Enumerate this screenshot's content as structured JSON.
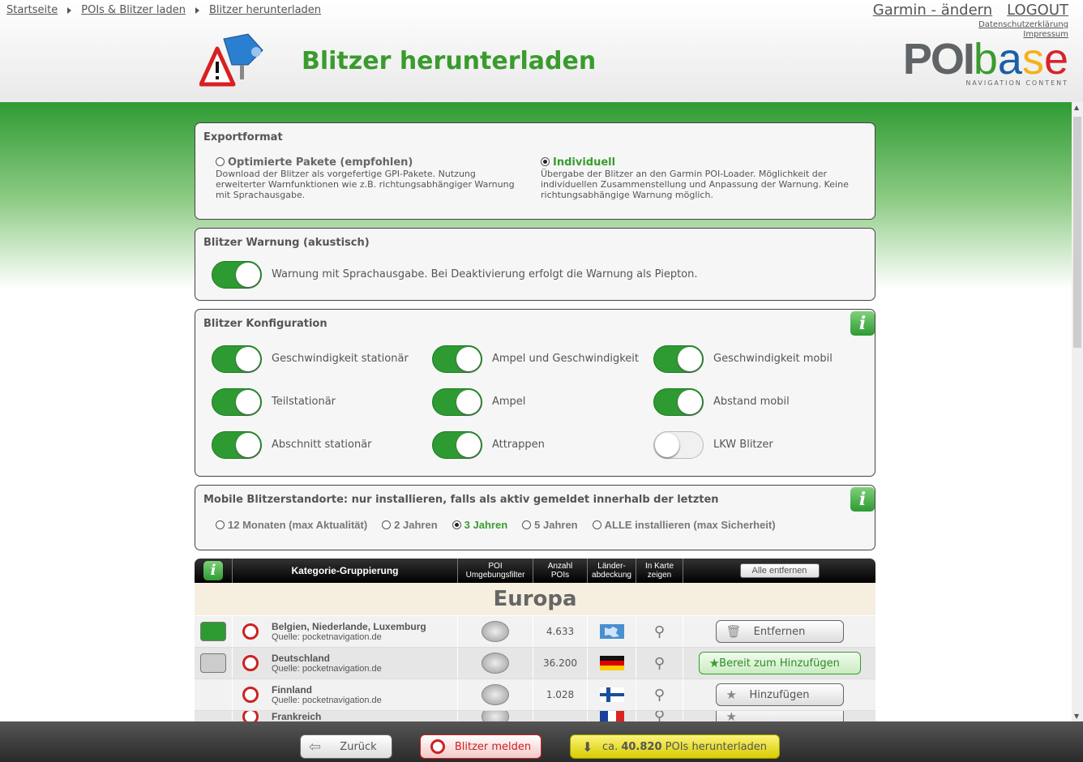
{
  "breadcrumb": [
    "Startseite",
    "POIs & Blitzer laden",
    "Blitzer herunterladen"
  ],
  "toplinks": {
    "device": "Garmin - ändern",
    "logout": "LOGOUT",
    "privacy": "Datenschutzerklärung",
    "imprint": "Impressum"
  },
  "logo": {
    "poi": "POI",
    "base": "base",
    "sub": "NAVIGATION CONTENT",
    "colors": [
      "#3a9b2e",
      "#1a5fa8",
      "#f3b21b",
      "#d8232a"
    ]
  },
  "page_title": "Blitzer herunterladen",
  "export": {
    "title": "Exportformat",
    "options": [
      {
        "label": "Optimierte Pakete (empfohlen)",
        "desc": "Download der Blitzer als vorgefertige GPI-Pakete. Nutzung erweiterter Warnfunktionen wie z.B. richtungsabhängiger Warnung mit Sprachausgabe.",
        "selected": false
      },
      {
        "label": "Individuell",
        "desc": "Übergabe der Blitzer an den Garmin POI-Loader. Möglichkeit der individuellen Zusammenstellung und Anpassung der Warnung. Keine richtungsabhängige Warnung möglich.",
        "selected": true
      }
    ]
  },
  "warning": {
    "title": "Blitzer Warnung (akustisch)",
    "label": "Warnung mit Sprachausgabe. Bei Deaktivierung erfolgt die Warnung als Piepton.",
    "on": true
  },
  "config": {
    "title": "Blitzer Konfiguration",
    "items": [
      {
        "label": "Geschwindigkeit stationär",
        "on": true
      },
      {
        "label": "Ampel und Geschwindigkeit",
        "on": true
      },
      {
        "label": "Geschwindigkeit mobil",
        "on": true
      },
      {
        "label": "Teilstationär",
        "on": true
      },
      {
        "label": "Ampel",
        "on": true
      },
      {
        "label": "Abstand mobil",
        "on": true
      },
      {
        "label": "Abschnitt stationär",
        "on": true
      },
      {
        "label": "Attrappen",
        "on": true
      },
      {
        "label": "LKW Blitzer",
        "on": false
      }
    ]
  },
  "mobile": {
    "title": "Mobile Blitzerstandorte: nur installieren, falls als aktiv gemeldet innerhalb der letzten",
    "options": [
      {
        "label": "12 Monaten (max Aktualität)",
        "selected": false
      },
      {
        "label": "2 Jahren",
        "selected": false
      },
      {
        "label": "3 Jahren",
        "selected": true
      },
      {
        "label": "5 Jahren",
        "selected": false
      },
      {
        "label": "ALLE installieren (max Sicherheit)",
        "selected": false
      }
    ]
  },
  "table": {
    "headers": [
      "Kategorie-Gruppierung",
      "POI Umgebungsfilter",
      "Anzahl POIs",
      "Länder-abdeckung",
      "In Karte zeigen"
    ],
    "remove_all": "Alle entfernen",
    "region": "Europa",
    "rows": [
      {
        "name": "Belgien, Niederlande, Luxemburg",
        "source": "Quelle: pocketnavigation.de",
        "count": "4.633",
        "flag": "europe",
        "action": "Entfernen",
        "state": "installed"
      },
      {
        "name": "Deutschland",
        "source": "Quelle: pocketnavigation.de",
        "count": "36.200",
        "flag": "germany",
        "action": "Bereit zum Hinzufügen",
        "state": "ready"
      },
      {
        "name": "Finnland",
        "source": "Quelle: pocketnavigation.de",
        "count": "1.028",
        "flag": "finland",
        "action": "Hinzufügen",
        "state": "none"
      },
      {
        "name": "Frankreich",
        "source": "",
        "count": "",
        "flag": "france",
        "action": "",
        "state": "none"
      }
    ]
  },
  "footer": {
    "back": "Zurück",
    "report": "Blitzer melden",
    "download_prefix": "ca.",
    "download_count": "40.820",
    "download_suffix": "POIs herunterladen"
  }
}
